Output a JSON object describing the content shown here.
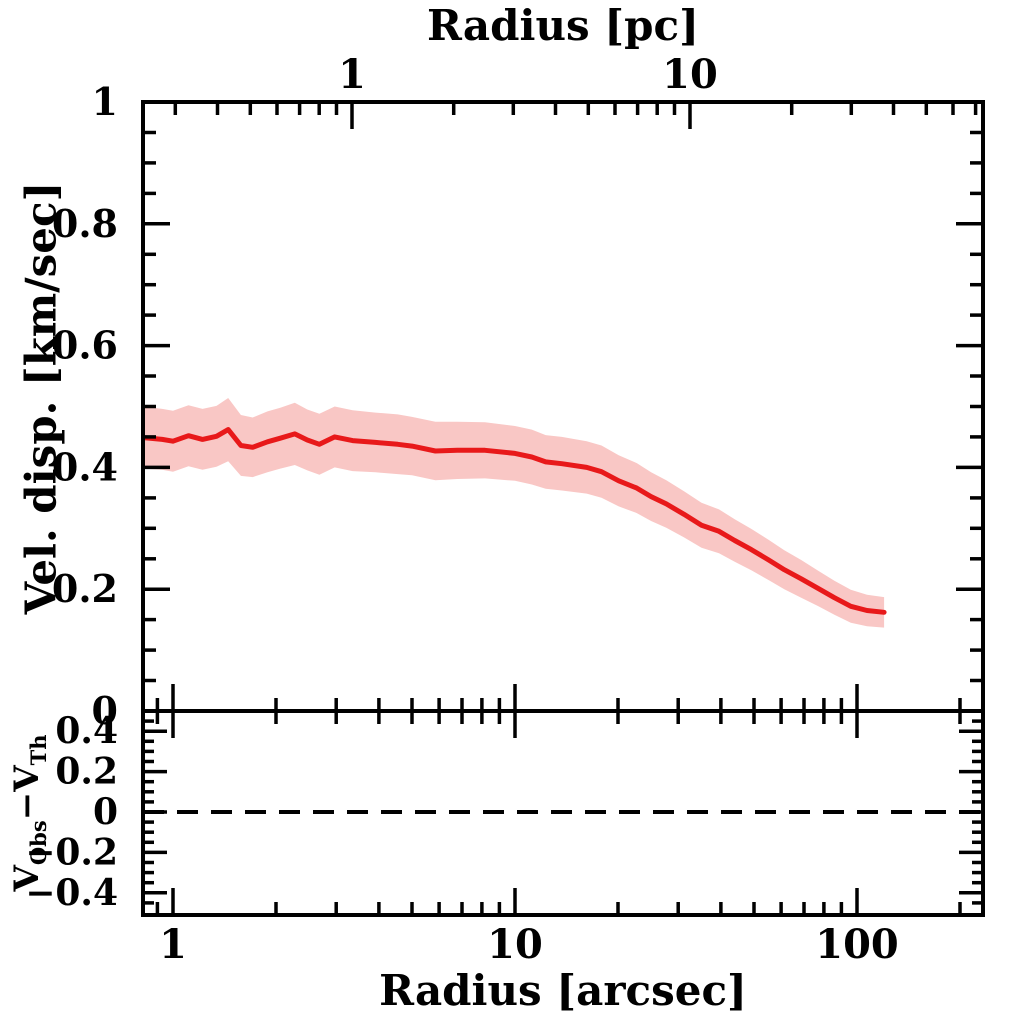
{
  "figure": {
    "background": "#ffffff",
    "axis_color": "#000000"
  },
  "chart_data": {
    "type": "line",
    "title": "",
    "panels": {
      "dispersion": {
        "name": "velocity dispersion profile",
        "x_bottom": {
          "label": "Radius [arcsec]",
          "scale": "log",
          "range": [
            0.82,
            233
          ],
          "major_ticks": [
            1,
            10,
            100
          ],
          "tick_labels": [
            "1",
            "10",
            "100"
          ],
          "minor_ticks": [
            0.9,
            2,
            3,
            4,
            5,
            6,
            7,
            8,
            9,
            20,
            30,
            40,
            50,
            60,
            70,
            80,
            90,
            200
          ]
        },
        "x_top": {
          "label": "Radius [pc]",
          "scale": "log",
          "range": [
            0.24,
            73.6
          ],
          "major_ticks": [
            1,
            10
          ],
          "tick_labels": [
            "1",
            "10"
          ],
          "minor_ticks": [
            0.3,
            0.4,
            0.5,
            0.6,
            0.7,
            0.8,
            0.9,
            2,
            3,
            4,
            5,
            6,
            7,
            8,
            9,
            20,
            30,
            40,
            50,
            60,
            70
          ]
        },
        "y": {
          "label": "Vel. disp. [km/sec]",
          "range": [
            0,
            1
          ],
          "major_ticks": [
            1,
            0.8,
            0.6,
            0.4,
            0.2,
            0
          ],
          "tick_labels": [
            "1",
            "0.8",
            "0.6",
            "0.4",
            "0.2",
            "0"
          ],
          "minor_ticks": [
            0.05,
            0.1,
            0.15,
            0.25,
            0.3,
            0.35,
            0.45,
            0.5,
            0.55,
            0.65,
            0.7,
            0.75,
            0.85,
            0.9,
            0.95
          ]
        },
        "series": [
          {
            "name": "observed velocity dispersion with uncertainty band",
            "line_color": "#e8191a",
            "band_color": "#f9c7c5",
            "points_r_v_err": [
              [
                0.82,
                0.449,
                0.051
              ],
              [
                0.93,
                0.446,
                0.05
              ],
              [
                1.0,
                0.443,
                0.05
              ],
              [
                1.11,
                0.452,
                0.05
              ],
              [
                1.22,
                0.446,
                0.05
              ],
              [
                1.34,
                0.451,
                0.05
              ],
              [
                1.45,
                0.462,
                0.052
              ],
              [
                1.58,
                0.436,
                0.05
              ],
              [
                1.71,
                0.433,
                0.049
              ],
              [
                1.89,
                0.442,
                0.05
              ],
              [
                2.06,
                0.448,
                0.05
              ],
              [
                2.27,
                0.455,
                0.051
              ],
              [
                2.47,
                0.445,
                0.05
              ],
              [
                2.68,
                0.438,
                0.05
              ],
              [
                2.97,
                0.45,
                0.05
              ],
              [
                3.35,
                0.444,
                0.05
              ],
              [
                3.91,
                0.441,
                0.049
              ],
              [
                4.54,
                0.438,
                0.049
              ],
              [
                5.0,
                0.435,
                0.048
              ],
              [
                5.85,
                0.427,
                0.048
              ],
              [
                6.78,
                0.428,
                0.047
              ],
              [
                8.17,
                0.428,
                0.046
              ],
              [
                10.0,
                0.423,
                0.045
              ],
              [
                11.2,
                0.417,
                0.045
              ],
              [
                12.3,
                0.409,
                0.044
              ],
              [
                13.7,
                0.406,
                0.044
              ],
              [
                16.2,
                0.4,
                0.043
              ],
              [
                17.9,
                0.393,
                0.043
              ],
              [
                20.1,
                0.378,
                0.042
              ],
              [
                22.7,
                0.366,
                0.041
              ],
              [
                25.0,
                0.352,
                0.04
              ],
              [
                27.7,
                0.34,
                0.039
              ],
              [
                31.2,
                0.323,
                0.038
              ],
              [
                35.1,
                0.305,
                0.037
              ],
              [
                39.5,
                0.295,
                0.036
              ],
              [
                43.9,
                0.28,
                0.035
              ],
              [
                49.1,
                0.265,
                0.034
              ],
              [
                55.2,
                0.248,
                0.033
              ],
              [
                61.3,
                0.232,
                0.032
              ],
              [
                68.7,
                0.217,
                0.031
              ],
              [
                77.1,
                0.201,
                0.029
              ],
              [
                85.9,
                0.186,
                0.028
              ],
              [
                95.9,
                0.172,
                0.027
              ],
              [
                107,
                0.165,
                0.026
              ],
              [
                120,
                0.162,
                0.025
              ]
            ]
          }
        ]
      },
      "residuals": {
        "name": "velocity residuals",
        "y": {
          "label_parts": {
            "v1": "V",
            "sub1": "Obs",
            "minus": "−",
            "v2": "V",
            "sub2": "Th"
          },
          "range": [
            -0.51,
            0.5
          ],
          "major_ticks": [
            0.4,
            0.2,
            0,
            -0.2,
            -0.4
          ],
          "tick_labels": [
            "0.4",
            "0.2",
            "0",
            "−0.2",
            "−0.4"
          ],
          "minor_ticks": [
            0.45,
            0.35,
            0.3,
            0.25,
            0.15,
            0.1,
            0.05,
            -0.05,
            -0.1,
            -0.15,
            -0.25,
            -0.3,
            -0.35,
            -0.45
          ]
        },
        "zero_line": {
          "value": 0,
          "style": "dashed",
          "color": "#000000"
        },
        "series": []
      }
    }
  }
}
